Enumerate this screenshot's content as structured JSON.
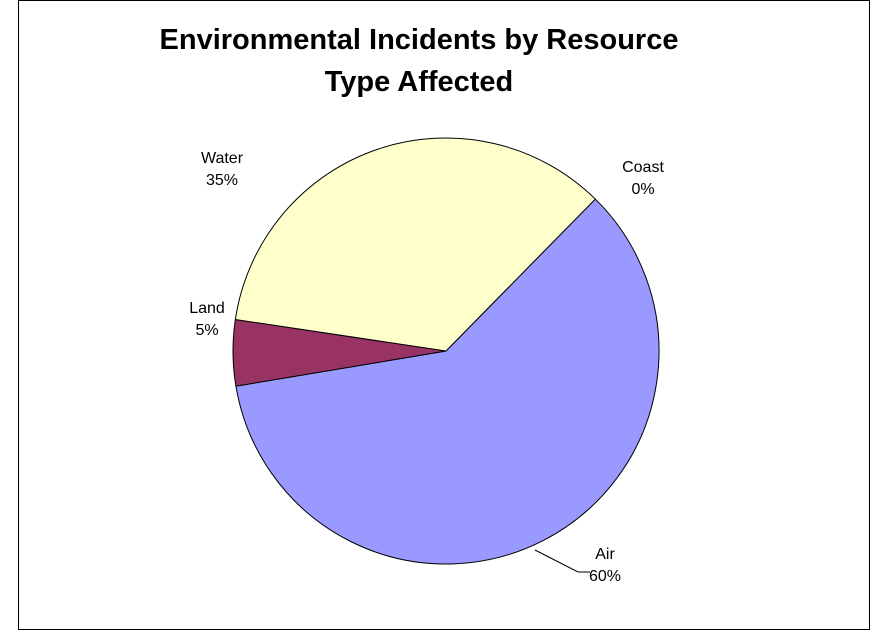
{
  "chart_data": {
    "type": "pie",
    "title_lines": [
      "Environmental Incidents by Resource",
      "Type Affected"
    ],
    "slices": [
      {
        "name": "Coast",
        "value": 0,
        "label": "0%",
        "color": "#000000"
      },
      {
        "name": "Air",
        "value": 60,
        "label": "60%",
        "color": "#9999FF"
      },
      {
        "name": "Land",
        "value": 5,
        "label": "5%",
        "color": "#993366"
      },
      {
        "name": "Water",
        "value": 35,
        "label": "35%",
        "color": "#FFFFCC"
      }
    ],
    "legend": "none"
  }
}
